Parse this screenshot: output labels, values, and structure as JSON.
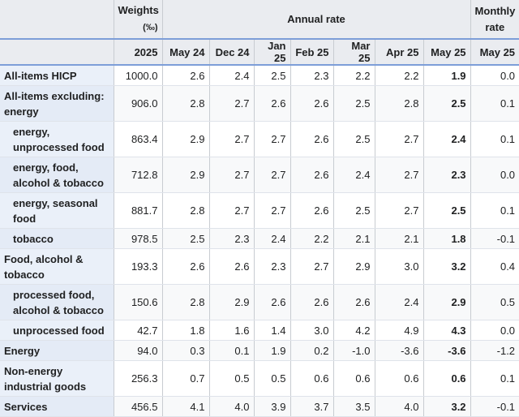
{
  "header": {
    "weights": "Weights",
    "weights_unit": "(‰)",
    "annual": "Annual rate",
    "monthly": "Monthly rate",
    "columns": [
      "2025",
      "May 24",
      "Dec 24",
      "Jan 25",
      "Feb 25",
      "Mar 25",
      "Apr 25",
      "May 25",
      "May 25"
    ]
  },
  "rows": [
    {
      "label": "All-items HICP",
      "indent": false,
      "values": [
        "1000.0",
        "2.6",
        "2.4",
        "2.5",
        "2.3",
        "2.2",
        "2.2",
        "1.9",
        "0.0"
      ]
    },
    {
      "label": "All-items excluding: energy",
      "indent": false,
      "values": [
        "906.0",
        "2.8",
        "2.7",
        "2.6",
        "2.6",
        "2.5",
        "2.8",
        "2.5",
        "0.1"
      ]
    },
    {
      "label": "energy, unprocessed food",
      "indent": true,
      "values": [
        "863.4",
        "2.9",
        "2.7",
        "2.7",
        "2.6",
        "2.5",
        "2.7",
        "2.4",
        "0.1"
      ]
    },
    {
      "label": "energy, food, alcohol & tobacco",
      "indent": true,
      "values": [
        "712.8",
        "2.9",
        "2.7",
        "2.7",
        "2.6",
        "2.4",
        "2.7",
        "2.3",
        "0.0"
      ]
    },
    {
      "label": "energy, seasonal food",
      "indent": true,
      "values": [
        "881.7",
        "2.8",
        "2.7",
        "2.7",
        "2.6",
        "2.5",
        "2.7",
        "2.5",
        "0.1"
      ]
    },
    {
      "label": "tobacco",
      "indent": true,
      "values": [
        "978.5",
        "2.5",
        "2.3",
        "2.4",
        "2.2",
        "2.1",
        "2.1",
        "1.8",
        "-0.1"
      ]
    },
    {
      "label": "Food, alcohol & tobacco",
      "indent": false,
      "values": [
        "193.3",
        "2.6",
        "2.6",
        "2.3",
        "2.7",
        "2.9",
        "3.0",
        "3.2",
        "0.4"
      ]
    },
    {
      "label": "processed food, alcohol & tobacco",
      "indent": true,
      "values": [
        "150.6",
        "2.8",
        "2.9",
        "2.6",
        "2.6",
        "2.6",
        "2.4",
        "2.9",
        "0.5"
      ]
    },
    {
      "label": "unprocessed food",
      "indent": true,
      "values": [
        "42.7",
        "1.8",
        "1.6",
        "1.4",
        "3.0",
        "4.2",
        "4.9",
        "4.3",
        "0.0"
      ]
    },
    {
      "label": "Energy",
      "indent": false,
      "values": [
        "94.0",
        "0.3",
        "0.1",
        "1.9",
        "0.2",
        "-1.0",
        "-3.6",
        "-3.6",
        "-1.2"
      ]
    },
    {
      "label": "Non-energy industrial goods",
      "indent": false,
      "values": [
        "256.3",
        "0.7",
        "0.5",
        "0.5",
        "0.6",
        "0.6",
        "0.6",
        "0.6",
        "0.1"
      ]
    },
    {
      "label": "Services",
      "indent": false,
      "values": [
        "456.5",
        "4.1",
        "4.0",
        "3.9",
        "3.7",
        "3.5",
        "4.0",
        "3.2",
        "-0.1"
      ]
    }
  ]
}
